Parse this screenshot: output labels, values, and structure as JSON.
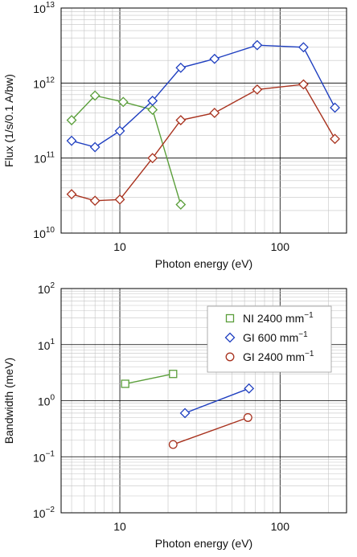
{
  "chart_data": [
    {
      "type": "line",
      "xlabel": "Photon energy (eV)",
      "ylabel": "Flux (1/s/0.1 A/bw)",
      "xscale": "log",
      "yscale": "log",
      "xlim": [
        4.3,
        260
      ],
      "ylim": [
        10000000000.0,
        10000000000000.0
      ],
      "grid": true,
      "x_ticks": [
        {
          "value": 10,
          "label": "10"
        },
        {
          "value": 100,
          "label": "100"
        }
      ],
      "y_ticks": [
        {
          "value": 10000000000.0,
          "base": "10",
          "exp": "10"
        },
        {
          "value": 100000000000.0,
          "base": "10",
          "exp": "11"
        },
        {
          "value": 1000000000000.0,
          "base": "10",
          "exp": "12"
        },
        {
          "value": 10000000000000.0,
          "base": "10",
          "exp": "13"
        }
      ],
      "series": [
        {
          "color": "#5a9e3a",
          "marker": "diamond",
          "x": [
            5,
            7,
            10.5,
            16,
            24
          ],
          "y": [
            320000000000.0,
            680000000000.0,
            560000000000.0,
            440000000000.0,
            24000000000.0
          ]
        },
        {
          "color": "#1f3fc0",
          "marker": "diamond",
          "x": [
            5,
            7,
            10,
            16,
            24,
            39,
            72,
            140,
            220
          ],
          "y": [
            170000000000.0,
            140000000000.0,
            230000000000.0,
            580000000000.0,
            1600000000000.0,
            2100000000000.0,
            3200000000000.0,
            3000000000000.0,
            470000000000.0
          ]
        },
        {
          "color": "#a8321e",
          "marker": "diamond",
          "x": [
            5,
            7,
            10,
            16,
            24,
            39,
            72,
            140,
            220
          ],
          "y": [
            33000000000.0,
            27000000000.0,
            28000000000.0,
            100000000000.0,
            320000000000.0,
            400000000000.0,
            820000000000.0,
            960000000000.0,
            180000000000.0
          ]
        }
      ]
    },
    {
      "type": "line",
      "xlabel": "Photon energy (eV)",
      "ylabel": "Bandwidth (meV)",
      "xscale": "log",
      "yscale": "log",
      "xlim": [
        4.3,
        260
      ],
      "ylim": [
        0.01,
        100
      ],
      "grid": true,
      "legend_position": "top-right",
      "x_ticks": [
        {
          "value": 10,
          "label": "10"
        },
        {
          "value": 100,
          "label": "100"
        }
      ],
      "y_ticks": [
        {
          "value": 0.01,
          "base": "10",
          "exp": "−2"
        },
        {
          "value": 0.1,
          "base": "10",
          "exp": "−1"
        },
        {
          "value": 1,
          "base": "10",
          "exp": "0"
        },
        {
          "value": 10,
          "base": "10",
          "exp": "1"
        },
        {
          "value": 100,
          "base": "10",
          "exp": "2"
        }
      ],
      "series": [
        {
          "name": "NI 2400 mm",
          "name_sup": "−1",
          "color": "#5a9e3a",
          "marker": "square",
          "x": [
            10.8,
            21.5
          ],
          "y": [
            2.0,
            3.0
          ]
        },
        {
          "name": "GI 600 mm",
          "name_sup": "−1",
          "color": "#1f3fc0",
          "marker": "diamond",
          "x": [
            25.5,
            64
          ],
          "y": [
            0.6,
            1.65
          ]
        },
        {
          "name": "GI 2400 mm",
          "name_sup": "−1",
          "color": "#a8321e",
          "marker": "circle",
          "x": [
            21.5,
            63
          ],
          "y": [
            0.165,
            0.5
          ]
        }
      ]
    }
  ]
}
